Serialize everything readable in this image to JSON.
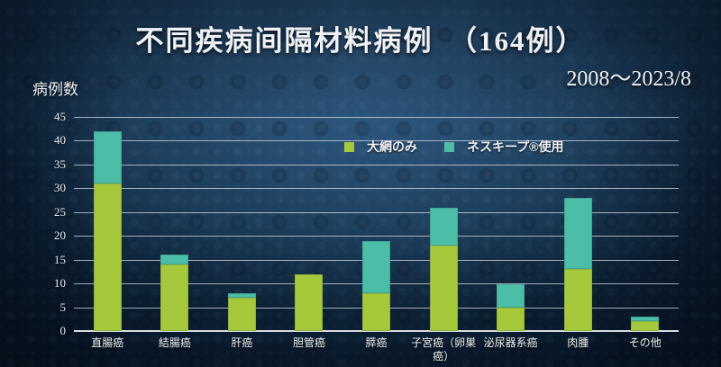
{
  "slide": {
    "title": "不同疾病间隔材料病例　（164例）",
    "subtitle": "2008～2023/8",
    "y_axis_label": "病例数"
  },
  "colors": {
    "series_green": "#a6c93c",
    "series_teal": "#4cbda7",
    "background_center": "#1d4161",
    "background_edge": "#07131f",
    "gridline": "#cad5e0",
    "text": "#eef2f6"
  },
  "chart_data": {
    "type": "bar",
    "stacked": true,
    "title": "不同疾病间隔材料病例　（164例）",
    "xlabel": "",
    "ylabel": "病例数",
    "ylim": [
      0,
      45
    ],
    "ytick_step": 5,
    "grid": true,
    "legend_position": "inside-top-right",
    "categories": [
      "直腸癌",
      "結腸癌",
      "肝癌",
      "胆管癌",
      "膵癌",
      "子宮癌（卵巣癌）",
      "泌尿器系癌",
      "肉腫",
      "その他"
    ],
    "series": [
      {
        "name": "大網のみ",
        "color": "#a6c93c",
        "values": [
          31,
          14,
          7,
          12,
          8,
          18,
          5,
          13,
          2
        ]
      },
      {
        "name": "ネスキープ®使用",
        "color": "#4cbda7",
        "values": [
          11,
          2,
          1,
          0,
          11,
          8,
          5,
          15,
          1
        ]
      }
    ],
    "stack_totals": [
      42,
      16,
      8,
      12,
      19,
      26,
      10,
      28,
      3
    ]
  }
}
